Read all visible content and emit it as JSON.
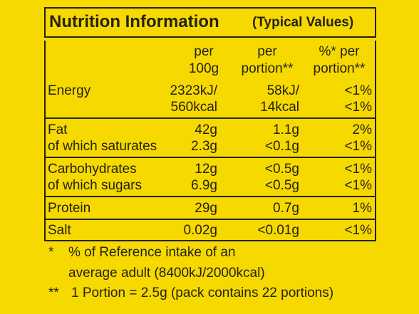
{
  "header": {
    "title": "Nutrition Information",
    "subtitle": "(Typical Values)"
  },
  "table": {
    "columns": [
      [
        "per",
        "100g"
      ],
      [
        "per",
        "portion**"
      ],
      [
        "%* per",
        "portion**"
      ]
    ],
    "sections": [
      [
        {
          "label": "Energy",
          "values": [
            "2323kJ/",
            "58kJ/",
            "<1%"
          ]
        },
        {
          "values": [
            "560kcal",
            "14kcal",
            "<1%"
          ]
        }
      ],
      [
        {
          "label": "Fat",
          "values": [
            "42g",
            "1.1g",
            "2%"
          ]
        },
        {
          "label": "of which saturates",
          "values": [
            "2.3g",
            "<0.1g",
            "<1%"
          ]
        }
      ],
      [
        {
          "label": "Carbohydrates",
          "values": [
            "12g",
            "<0.5g",
            "<1%"
          ]
        },
        {
          "label": "of which sugars",
          "values": [
            "6.9g",
            "<0.5g",
            "<1%"
          ]
        }
      ],
      [
        {
          "label": "Protein",
          "values": [
            "29g",
            "0.7g",
            "1%"
          ]
        }
      ],
      [
        {
          "label": "Salt",
          "values": [
            "0.02g",
            "<0.01g",
            "<1%"
          ]
        }
      ]
    ]
  },
  "footnotes": [
    {
      "mark": "*",
      "lines": [
        "% of Reference intake of an",
        "average adult (8400kJ/2000kcal)"
      ]
    },
    {
      "mark": "**",
      "lines": [
        "1 Portion = 2.5g (pack contains 22 portions)"
      ]
    }
  ]
}
